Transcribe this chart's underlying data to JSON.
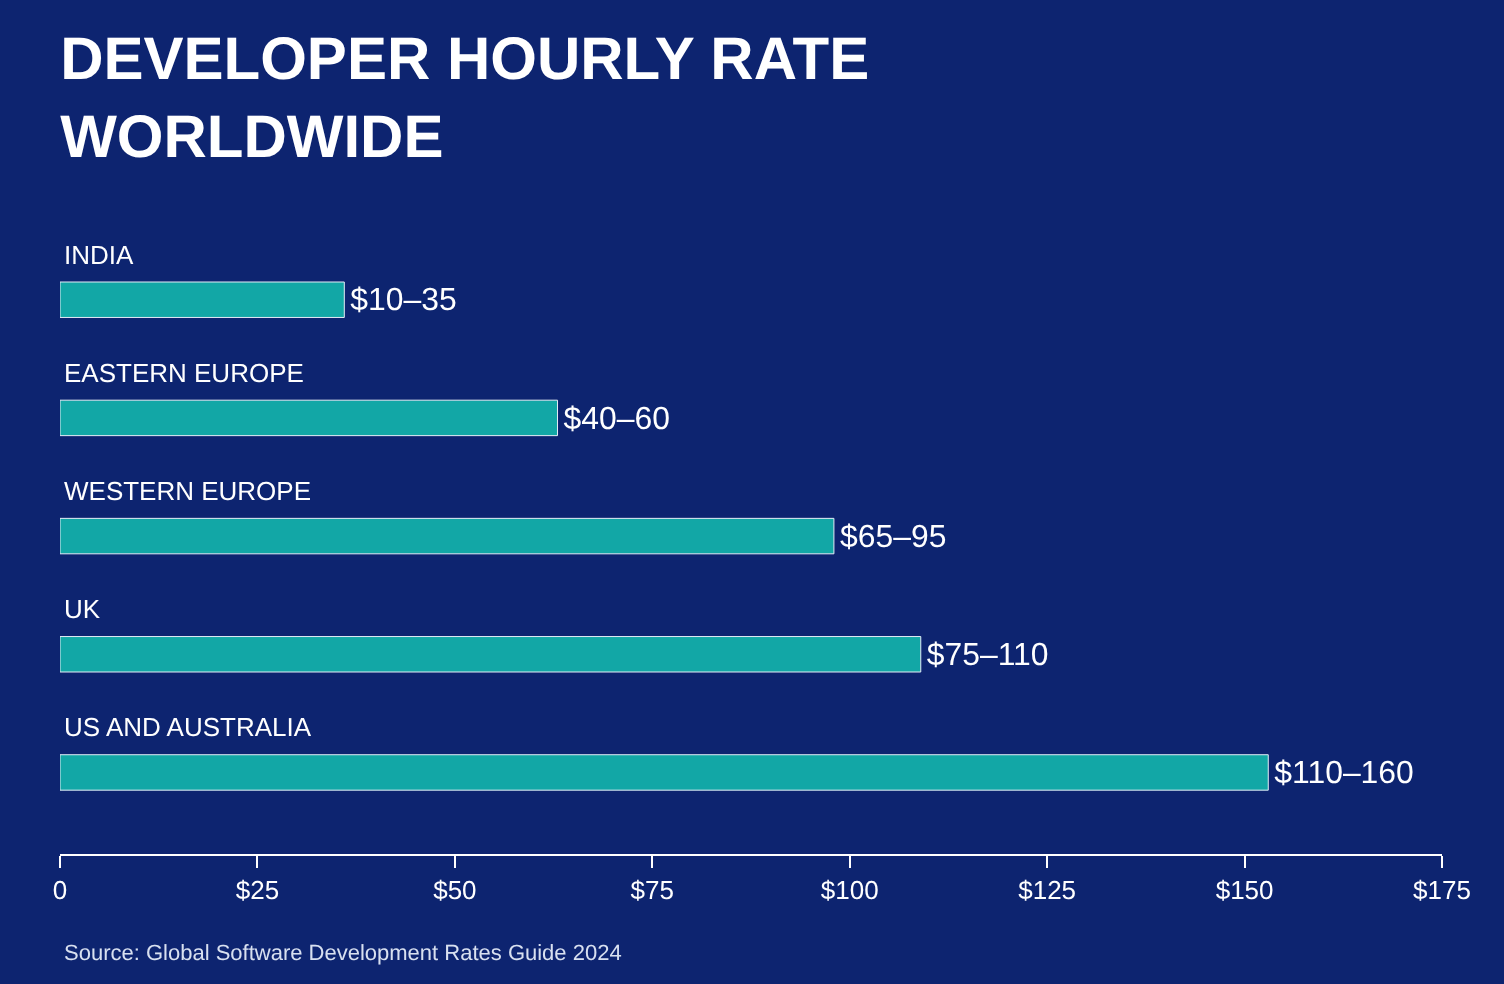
{
  "chart_data": {
    "type": "bar",
    "orientation": "horizontal",
    "title": "DEVELOPER HOURLY RATE WORLDWIDE",
    "categories": [
      "INDIA",
      "EASTERN EUROPE",
      "WESTERN EUROPE",
      "UK",
      "US AND AUSTRALIA"
    ],
    "values": [
      36,
      63,
      98,
      109,
      153
    ],
    "value_labels": [
      "$10–35",
      "$40–60",
      "$65–95",
      "$75–110",
      "$110–160"
    ],
    "color": "#12a7a6",
    "xlim": [
      0,
      175
    ],
    "xticks": [
      0,
      {
        "value": 25,
        "label": "$25"
      },
      {
        "value": 50,
        "label": "$50"
      },
      {
        "value": 75,
        "label": "$75"
      },
      {
        "value": 100,
        "label": "$100"
      },
      {
        "value": 125,
        "label": "$125"
      },
      {
        "value": 150,
        "label": "$150"
      },
      {
        "value": 175,
        "label": "$175"
      }
    ],
    "grid": false,
    "legend": false,
    "annotations": [
      "Source: Global Software Development Rates Guide 2024"
    ]
  }
}
